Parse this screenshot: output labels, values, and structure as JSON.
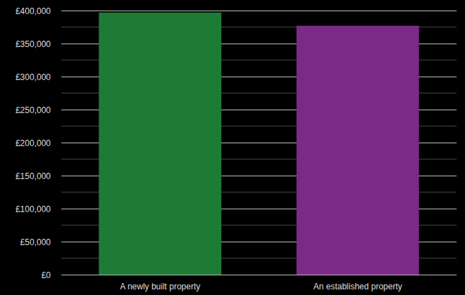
{
  "chart_data": {
    "type": "bar",
    "categories": [
      "A newly built property",
      "An established property"
    ],
    "values": [
      397000,
      377000
    ],
    "colors": [
      "#1e7b35",
      "#7b2a87"
    ],
    "ylim": [
      0,
      400000
    ],
    "yticks": [
      {
        "value": 0,
        "label": "£0"
      },
      {
        "value": 50000,
        "label": "£50,000"
      },
      {
        "value": 100000,
        "label": "£100,000"
      },
      {
        "value": 150000,
        "label": "£150,000"
      },
      {
        "value": 200000,
        "label": "£200,000"
      },
      {
        "value": 250000,
        "label": "£250,000"
      },
      {
        "value": 300000,
        "label": "£300,000"
      },
      {
        "value": 350000,
        "label": "£350,000"
      },
      {
        "value": 400000,
        "label": "£400,000"
      }
    ],
    "grid": true
  }
}
